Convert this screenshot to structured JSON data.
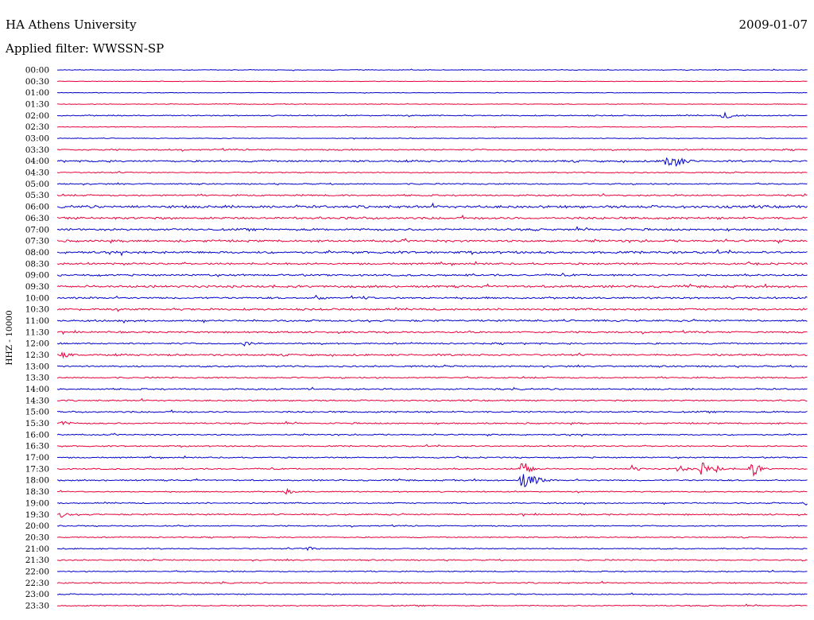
{
  "header": {
    "station": "HA Athens University",
    "date": "2009-01-07",
    "filter": "Applied filter: WWSSN-SP"
  },
  "chart_data": {
    "type": "line",
    "title": "",
    "ylabel": "HHZ - 10000",
    "xlabel": "",
    "grid": false,
    "legend": "none",
    "tick_labels": [
      "00:00",
      "00:30",
      "01:00",
      "01:30",
      "02:00",
      "02:30",
      "03:00",
      "03:30",
      "04:00",
      "04:30",
      "05:00",
      "05:30",
      "06:00",
      "06:30",
      "07:00",
      "07:30",
      "08:00",
      "08:30",
      "09:00",
      "09:30",
      "10:00",
      "10:30",
      "11:00",
      "11:30",
      "12:00",
      "12:30",
      "13:00",
      "13:30",
      "14:00",
      "14:30",
      "15:00",
      "15:30",
      "16:00",
      "16:30",
      "17:00",
      "17:30",
      "18:00",
      "18:30",
      "19:00",
      "19:30",
      "20:00",
      "20:30",
      "21:00",
      "21:30",
      "22:00",
      "22:30",
      "23:00",
      "23:30"
    ],
    "colors": {
      "even": "#0000cc",
      "odd": "#e8003a"
    },
    "trace_noise": [
      0.5,
      0.4,
      0.4,
      0.5,
      0.8,
      0.5,
      0.5,
      1.0,
      1.3,
      0.8,
      0.9,
      1.1,
      1.8,
      1.6,
      1.5,
      1.5,
      1.6,
      1.3,
      1.3,
      1.6,
      1.3,
      1.4,
      1.3,
      1.2,
      1.1,
      1.3,
      1.1,
      1.0,
      1.1,
      1.0,
      1.1,
      1.0,
      0.9,
      0.9,
      0.9,
      0.9,
      1.0,
      0.8,
      0.9,
      1.0,
      0.8,
      0.8,
      0.8,
      0.9,
      0.8,
      0.9,
      0.8,
      0.8
    ],
    "events": [
      {
        "row": 4,
        "start": 0.88,
        "duration": 0.04,
        "amplitude": 4
      },
      {
        "row": 8,
        "start": 0.806,
        "duration": 0.03,
        "amplitude": 13
      },
      {
        "row": 35,
        "start": 0.614,
        "duration": 0.01,
        "amplitude": 12
      },
      {
        "row": 35,
        "start": 0.76,
        "duration": 0.01,
        "amplitude": 5
      },
      {
        "row": 35,
        "start": 0.822,
        "duration": 0.012,
        "amplitude": 5
      },
      {
        "row": 35,
        "start": 0.853,
        "duration": 0.012,
        "amplitude": 10
      },
      {
        "row": 35,
        "start": 0.871,
        "duration": 0.01,
        "amplitude": 5
      },
      {
        "row": 35,
        "start": 0.92,
        "duration": 0.012,
        "amplitude": 10
      },
      {
        "row": 36,
        "start": 0.613,
        "duration": 0.025,
        "amplitude": 15
      },
      {
        "row": 37,
        "start": 0.3,
        "duration": 0.008,
        "amplitude": 4
      },
      {
        "row": 38,
        "start": 0.99,
        "duration": 0.01,
        "amplitude": 3
      },
      {
        "row": 25,
        "start": 0.0,
        "duration": 0.02,
        "amplitude": 4
      },
      {
        "row": 31,
        "start": 0.0,
        "duration": 0.01,
        "amplitude": 4
      },
      {
        "row": 39,
        "start": 0.0,
        "duration": 0.01,
        "amplitude": 4
      },
      {
        "row": 42,
        "start": 0.33,
        "duration": 0.006,
        "amplitude": 4
      },
      {
        "row": 24,
        "start": 0.245,
        "duration": 0.004,
        "amplitude": 4
      },
      {
        "row": 20,
        "start": 0.34,
        "duration": 0.008,
        "amplitude": 4
      },
      {
        "row": 20,
        "start": 0.4,
        "duration": 0.02,
        "amplitude": 3
      }
    ]
  }
}
